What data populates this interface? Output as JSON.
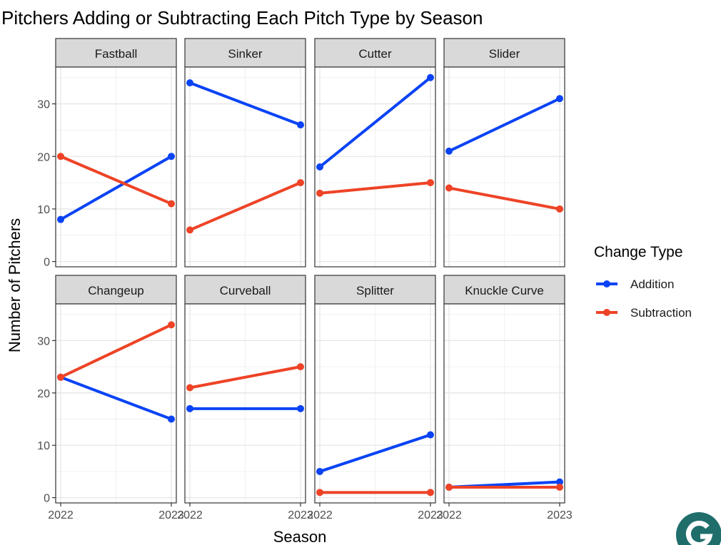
{
  "chart_data": {
    "type": "line",
    "title": "Pitchers Adding or Subtracting Each Pitch Type by Season",
    "xlabel": "Season",
    "ylabel": "Number of Pitchers",
    "x": [
      "2022",
      "2023"
    ],
    "ylim": [
      -1,
      37
    ],
    "yticks": [
      0,
      10,
      20,
      30
    ],
    "grid": true,
    "legend": {
      "title": "Change Type",
      "position": "right",
      "entries": [
        {
          "name": "Addition",
          "color": "#0a43f5"
        },
        {
          "name": "Subtraction",
          "color": "#ee4326"
        }
      ]
    },
    "panels": [
      {
        "name": "Fastball",
        "series": [
          {
            "name": "Addition",
            "values": [
              8,
              20
            ]
          },
          {
            "name": "Subtraction",
            "values": [
              20,
              11
            ]
          }
        ]
      },
      {
        "name": "Sinker",
        "series": [
          {
            "name": "Addition",
            "values": [
              34,
              26
            ]
          },
          {
            "name": "Subtraction",
            "values": [
              6,
              15
            ]
          }
        ]
      },
      {
        "name": "Cutter",
        "series": [
          {
            "name": "Addition",
            "values": [
              18,
              35
            ]
          },
          {
            "name": "Subtraction",
            "values": [
              13,
              15
            ]
          }
        ]
      },
      {
        "name": "Slider",
        "series": [
          {
            "name": "Addition",
            "values": [
              21,
              31
            ]
          },
          {
            "name": "Subtraction",
            "values": [
              14,
              10
            ]
          }
        ]
      },
      {
        "name": "Changeup",
        "series": [
          {
            "name": "Addition",
            "values": [
              23,
              15
            ]
          },
          {
            "name": "Subtraction",
            "values": [
              23,
              33
            ]
          }
        ]
      },
      {
        "name": "Curveball",
        "series": [
          {
            "name": "Addition",
            "values": [
              17,
              17
            ]
          },
          {
            "name": "Subtraction",
            "values": [
              21,
              25
            ]
          }
        ]
      },
      {
        "name": "Splitter",
        "series": [
          {
            "name": "Addition",
            "values": [
              5,
              12
            ]
          },
          {
            "name": "Subtraction",
            "values": [
              1,
              1
            ]
          }
        ]
      },
      {
        "name": "Knuckle Curve",
        "series": [
          {
            "name": "Addition",
            "values": [
              2,
              3
            ]
          },
          {
            "name": "Subtraction",
            "values": [
              2,
              2
            ]
          }
        ]
      }
    ]
  },
  "branding": {
    "logo_icon": "g-logo-icon",
    "logo_color": "#1f6e6c"
  }
}
